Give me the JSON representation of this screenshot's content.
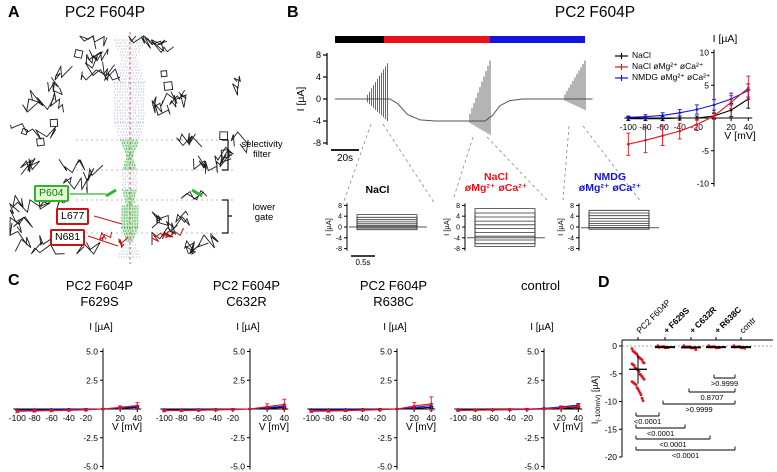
{
  "colors": {
    "red": "#e8111c",
    "blue": "#1414e0",
    "black": "#000000",
    "green": "#2db52d",
    "gray": "#777777"
  },
  "panel_a": {
    "label": "A",
    "title": "PC2 F604P",
    "residues": [
      {
        "id": "p604",
        "text": "P604",
        "style": "green"
      },
      {
        "id": "l677",
        "text": "L677",
        "style": "red"
      },
      {
        "id": "n681",
        "text": "N681",
        "style": "red"
      }
    ],
    "region_labels": [
      {
        "id": "selectivity-filter",
        "text": "selectivity\nfilter"
      },
      {
        "id": "lower-gate",
        "text": "lower\ngate"
      }
    ]
  },
  "panel_b": {
    "label": "B",
    "title": "PC2 F604P",
    "condition_bar": [
      {
        "name": "NaCl",
        "color": "#000000",
        "frac": 0.195
      },
      {
        "name": "NaCl øMg²⁺ øCa²⁺",
        "color": "#e8111c",
        "frac": 0.425
      },
      {
        "name": "NMDG øMg²⁺ øCa²⁺",
        "color": "#1414e0",
        "frac": 0.38
      }
    ]
  },
  "panel_c": {
    "label": "C"
  },
  "panel_d": {
    "label": "D"
  },
  "chart_data": [
    {
      "id": "timecourse",
      "type": "line",
      "ylabel": "I [µA]",
      "ylim": [
        -8,
        8
      ],
      "yticks": [
        8,
        4,
        0,
        -4,
        -8
      ],
      "scalebar": "20s",
      "envelope_tI": [
        [
          0,
          0
        ],
        [
          10,
          0
        ],
        [
          22,
          0
        ],
        [
          25,
          -0.8
        ],
        [
          29,
          -2.8
        ],
        [
          34,
          -3.8
        ],
        [
          40,
          -4
        ],
        [
          60,
          -4
        ],
        [
          63,
          -3
        ],
        [
          66,
          -1.2
        ],
        [
          70,
          -0.3
        ],
        [
          75,
          0
        ],
        [
          103,
          0
        ]
      ],
      "bursts": [
        {
          "t0": 13,
          "t1": 21,
          "base": 0,
          "min": -4,
          "max": 6.5
        },
        {
          "t0": 54,
          "t1": 62,
          "base": -4,
          "min": -6.5,
          "max": 7
        },
        {
          "t0": 92,
          "t1": 100,
          "base": 0,
          "min": -2,
          "max": 7
        }
      ]
    },
    {
      "id": "inset_nacl",
      "type": "line",
      "title_lines": [
        "NaCl",
        ""
      ],
      "title_color": "#000000",
      "ylabel": "I [µA]",
      "ylim": [
        -8,
        8
      ],
      "yticks": [
        8,
        4,
        0,
        -4,
        -8
      ],
      "scalebar": "0.5s",
      "baseline": 0,
      "steps": [
        4.6,
        3.6,
        2.7,
        1.9,
        1.2,
        0.6,
        0.1,
        -0.4,
        -1.0
      ]
    },
    {
      "id": "inset_nacl_divfree",
      "type": "line",
      "title_lines": [
        "NaCl",
        "øMg²⁺ øCa²⁺"
      ],
      "title_color": "#e8111c",
      "ylabel": "I [µA]",
      "ylim": [
        -8,
        8
      ],
      "yticks": [
        8,
        4,
        0,
        -4,
        -8
      ],
      "scalebar": "",
      "baseline": -4,
      "steps": [
        6.8,
        5.2,
        3.7,
        2.2,
        0.8,
        -0.6,
        -2.0,
        -3.4,
        -4.8,
        -6.2,
        -7.2
      ]
    },
    {
      "id": "inset_nmdg",
      "type": "line",
      "title_lines": [
        "NMDG",
        "øMg²⁺ øCa²⁺"
      ],
      "title_color": "#1414e0",
      "ylabel": "I [µA]",
      "ylim": [
        -8,
        8
      ],
      "yticks": [
        8,
        4,
        0,
        -4,
        -8
      ],
      "scalebar": "",
      "baseline": -0.3,
      "steps": [
        6.2,
        5.2,
        4.2,
        3.2,
        2.2,
        1.3,
        0.5,
        -0.2,
        -0.8
      ]
    },
    {
      "id": "iv_main",
      "type": "line",
      "xlabel": "V [mV]",
      "ylabel": "I [µA]",
      "xlim": [
        -100,
        40
      ],
      "ylim": [
        -10,
        10
      ],
      "x": [
        -100,
        -80,
        -60,
        -40,
        -20,
        0,
        20,
        40
      ],
      "xticks": [
        -100,
        -80,
        -60,
        -40,
        -20,
        20,
        40
      ],
      "yticks": [
        10,
        5,
        -5,
        -10
      ],
      "ytick_labels": [
        "10",
        "5",
        "-5",
        "-10"
      ],
      "legend_position": "top-left",
      "series": [
        {
          "name": "NaCl",
          "color": "#000000",
          "values": [
            -0.1,
            -0.1,
            -0.1,
            0,
            0,
            0.3,
            1.2,
            2.9
          ],
          "err": [
            0.3,
            0.3,
            0.3,
            0.3,
            0.3,
            0.4,
            1.0,
            1.4
          ]
        },
        {
          "name": "NaCl øMg²⁺ øCa²⁺",
          "color": "#e8111c",
          "values": [
            -4.0,
            -3.4,
            -2.7,
            -2.0,
            -1.0,
            0.3,
            2.4,
            4.6
          ],
          "err": [
            1.7,
            1.9,
            1.5,
            1.2,
            0.9,
            0.5,
            1.0,
            1.8
          ]
        },
        {
          "name": "NMDG øMg²⁺ øCa²⁺",
          "color": "#1414e0",
          "values": [
            0.1,
            0.2,
            0.4,
            0.8,
            1.3,
            2.0,
            2.9,
            4.2
          ],
          "err": [
            0.2,
            0.3,
            0.4,
            0.5,
            0.7,
            0.8,
            0.9,
            1.0
          ]
        }
      ]
    },
    {
      "id": "iv_f629s",
      "type": "line",
      "title_lines": [
        "PC2 F604P",
        "F629S"
      ],
      "xlabel": "V [mV]",
      "ylabel": "I [µA]",
      "xlim": [
        -100,
        40
      ],
      "ylim": [
        -5,
        5
      ],
      "x": [
        -100,
        -80,
        -60,
        -40,
        -20,
        0,
        20,
        40
      ],
      "xticks": [
        -100,
        -80,
        -60,
        -40,
        -20,
        20,
        40
      ],
      "yticks": [
        5,
        2.5,
        -2.5,
        -5
      ],
      "ytick_labels": [
        "5.0",
        "2.5",
        "-2.5",
        "-5.0"
      ],
      "series": [
        {
          "name": "NaCl",
          "color": "#000000",
          "values": [
            -0.05,
            -0.05,
            -0.04,
            -0.03,
            -0.02,
            0,
            0.05,
            0.15
          ],
          "err": [
            0.05,
            0.05,
            0.05,
            0.05,
            0.05,
            0.05,
            0.05,
            0.08
          ]
        },
        {
          "name": "NaCl øMg²⁺ øCa²⁺",
          "color": "#e8111c",
          "values": [
            -0.2,
            -0.17,
            -0.14,
            -0.11,
            -0.07,
            0,
            0.15,
            0.3
          ],
          "err": [
            0.12,
            0.1,
            0.1,
            0.08,
            0.08,
            0.05,
            0.12,
            0.25
          ]
        },
        {
          "name": "NMDG øMg²⁺ øCa²⁺",
          "color": "#1414e0",
          "values": [
            -0.1,
            -0.09,
            -0.07,
            -0.05,
            -0.03,
            0,
            0.1,
            0.2
          ],
          "err": [
            0.05,
            0.05,
            0.05,
            0.05,
            0.05,
            0.05,
            0.08,
            0.1
          ]
        }
      ]
    },
    {
      "id": "iv_c632r",
      "type": "line",
      "title_lines": [
        "PC2 F604P",
        "C632R"
      ],
      "xlabel": "V [mV]",
      "ylabel": "I [µA]",
      "xlim": [
        -100,
        40
      ],
      "ylim": [
        -5,
        5
      ],
      "x": [
        -100,
        -80,
        -60,
        -40,
        -20,
        0,
        20,
        40
      ],
      "xticks": [
        -100,
        -80,
        -60,
        -40,
        -20,
        20,
        40
      ],
      "yticks": [
        5,
        2.5,
        -2.5,
        -5
      ],
      "ytick_labels": [
        "5.0",
        "2.5",
        "-2.5",
        "-5.0"
      ],
      "series": [
        {
          "name": "NaCl",
          "color": "#000000",
          "values": [
            -0.05,
            -0.05,
            -0.04,
            -0.03,
            -0.02,
            0,
            0.05,
            0.15
          ],
          "err": [
            0.05,
            0.05,
            0.05,
            0.05,
            0.05,
            0.05,
            0.05,
            0.08
          ]
        },
        {
          "name": "NaCl øMg²⁺ øCa²⁺",
          "color": "#e8111c",
          "values": [
            -0.15,
            -0.13,
            -0.11,
            -0.08,
            -0.05,
            0,
            0.2,
            0.4
          ],
          "err": [
            0.1,
            0.08,
            0.08,
            0.08,
            0.06,
            0.05,
            0.25,
            0.45
          ]
        },
        {
          "name": "NMDG øMg²⁺ øCa²⁺",
          "color": "#1414e0",
          "values": [
            -0.1,
            -0.09,
            -0.07,
            -0.05,
            -0.03,
            0,
            0.1,
            0.25
          ],
          "err": [
            0.05,
            0.05,
            0.05,
            0.05,
            0.05,
            0.05,
            0.08,
            0.12
          ]
        }
      ]
    },
    {
      "id": "iv_r638c",
      "type": "line",
      "title_lines": [
        "PC2 F604P",
        "R638C"
      ],
      "xlabel": "V [mV]",
      "ylabel": "I [µA]",
      "xlim": [
        -100,
        40
      ],
      "ylim": [
        -5,
        5
      ],
      "x": [
        -100,
        -80,
        -60,
        -40,
        -20,
        0,
        20,
        40
      ],
      "xticks": [
        -100,
        -80,
        -60,
        -40,
        -20,
        20,
        40
      ],
      "yticks": [
        5,
        2.5,
        -2.5,
        -5
      ],
      "ytick_labels": [
        "5.0",
        "2.5",
        "-2.5",
        "-5.0"
      ],
      "series": [
        {
          "name": "NaCl",
          "color": "#000000",
          "values": [
            -0.05,
            -0.05,
            -0.04,
            -0.03,
            -0.02,
            0,
            0.05,
            0.15
          ],
          "err": [
            0.05,
            0.05,
            0.05,
            0.05,
            0.05,
            0.05,
            0.05,
            0.08
          ]
        },
        {
          "name": "NaCl øMg²⁺ øCa²⁺",
          "color": "#e8111c",
          "values": [
            -0.2,
            -0.18,
            -0.15,
            -0.1,
            -0.06,
            0,
            0.25,
            0.45
          ],
          "err": [
            0.1,
            0.1,
            0.08,
            0.08,
            0.06,
            0.05,
            0.3,
            0.6
          ]
        },
        {
          "name": "NMDG øMg²⁺ øCa²⁺",
          "color": "#1414e0",
          "values": [
            -0.1,
            -0.09,
            -0.07,
            -0.05,
            -0.03,
            0,
            0.12,
            0.3
          ],
          "err": [
            0.05,
            0.05,
            0.05,
            0.05,
            0.05,
            0.05,
            0.08,
            0.15
          ]
        }
      ]
    },
    {
      "id": "iv_control",
      "type": "line",
      "title_lines": [
        "control",
        ""
      ],
      "xlabel": "V [mV]",
      "ylabel": "I [µA]",
      "xlim": [
        -100,
        40
      ],
      "ylim": [
        -5,
        5
      ],
      "x": [
        -100,
        -80,
        -60,
        -40,
        -20,
        0,
        20,
        40
      ],
      "xticks": [
        -100,
        -80,
        -60,
        -40,
        -20,
        20,
        40
      ],
      "yticks": [
        5,
        2.5,
        -2.5,
        -5
      ],
      "ytick_labels": [
        "5.0",
        "2.5",
        "-2.5",
        "-5.0"
      ],
      "series": [
        {
          "name": "NaCl",
          "color": "#000000",
          "values": [
            -0.05,
            -0.05,
            -0.04,
            -0.03,
            -0.02,
            0,
            0.05,
            0.12
          ],
          "err": [
            0.05,
            0.05,
            0.05,
            0.05,
            0.05,
            0.05,
            0.05,
            0.08
          ]
        },
        {
          "name": "NaCl øMg²⁺ øCa²⁺",
          "color": "#e8111c",
          "values": [
            -0.12,
            -0.1,
            -0.08,
            -0.06,
            -0.04,
            0,
            0.12,
            0.25
          ],
          "err": [
            0.08,
            0.08,
            0.06,
            0.06,
            0.05,
            0.05,
            0.1,
            0.15
          ]
        },
        {
          "name": "NMDG øMg²⁺ øCa²⁺",
          "color": "#1414e0",
          "values": [
            -0.1,
            -0.09,
            -0.07,
            -0.05,
            -0.02,
            0.05,
            0.18,
            0.35
          ],
          "err": [
            0.05,
            0.05,
            0.05,
            0.05,
            0.05,
            0.05,
            0.08,
            0.12
          ]
        }
      ]
    },
    {
      "id": "scatter_d",
      "type": "scatter",
      "ylabel_parts": [
        "I",
        "(-100mV)",
        " [µA]"
      ],
      "ylim": [
        -20,
        0
      ],
      "yticks": [
        0,
        -5,
        -10,
        -15,
        -20
      ],
      "ytick_labels": [
        "0",
        "-5",
        "-10",
        "-15",
        "-20"
      ],
      "categories": [
        {
          "label": "PC2 F604P",
          "bold": false
        },
        {
          "label": "+ F629S",
          "bold": true
        },
        {
          "label": "+ C632R",
          "bold": true
        },
        {
          "label": "+ R638C",
          "bold": true
        },
        {
          "label": "contr",
          "bold": false
        }
      ],
      "points": [
        [
          -0.6,
          -0.8,
          -1.0,
          -1.2,
          -1.4,
          -1.6,
          -1.8,
          -2.0,
          -2.2,
          -2.4,
          -2.6,
          -2.8,
          -3.0,
          -3.2,
          -3.4,
          -3.6,
          -3.8,
          -4.0,
          -4.2,
          -4.4,
          -4.7,
          -5.0,
          -5.2,
          -5.5,
          -5.8,
          -6.1,
          -6.3,
          -6.5,
          -6.7,
          -6.9,
          -7.1,
          -7.4,
          -7.7,
          -8.1,
          -8.5,
          -8.9,
          -9.3,
          -9.8
        ],
        [
          -0.05,
          -0.1,
          -0.12,
          -0.15,
          -0.18,
          -0.2,
          -0.22,
          -0.25,
          -0.28,
          -0.32
        ],
        [
          -0.05,
          -0.1,
          -0.13,
          -0.16,
          -0.19,
          -0.22,
          -0.25,
          -0.28,
          -0.32,
          -0.4,
          -0.75
        ],
        [
          -0.04,
          -0.08,
          -0.12,
          -0.15,
          -0.18,
          -0.21,
          -0.24,
          -0.27,
          -0.3,
          -0.35
        ],
        [
          -0.05,
          -0.09,
          -0.12,
          -0.15,
          -0.18,
          -0.2,
          -0.23,
          -0.26,
          -0.3,
          -0.45
        ]
      ],
      "means": [
        -4.2,
        -0.2,
        -0.25,
        -0.2,
        -0.2
      ],
      "whisker": [
        [
          -1.6,
          -6.8
        ],
        null,
        null,
        null,
        null
      ],
      "comparisons": [
        {
          "a": 3,
          "b": 4,
          "p": ">0.9999"
        },
        {
          "a": 2,
          "b": 4,
          "p": "0.8707"
        },
        {
          "a": 1,
          "b": 4,
          "p": ">0.9999"
        },
        {
          "a": 0,
          "b": 1,
          "p": "<0.0001"
        },
        {
          "a": 0,
          "b": 2,
          "p": "<0.0001"
        },
        {
          "a": 0,
          "b": 3,
          "p": "<0.0001"
        },
        {
          "a": 0,
          "b": 4,
          "p": "<0.0001"
        }
      ]
    }
  ]
}
